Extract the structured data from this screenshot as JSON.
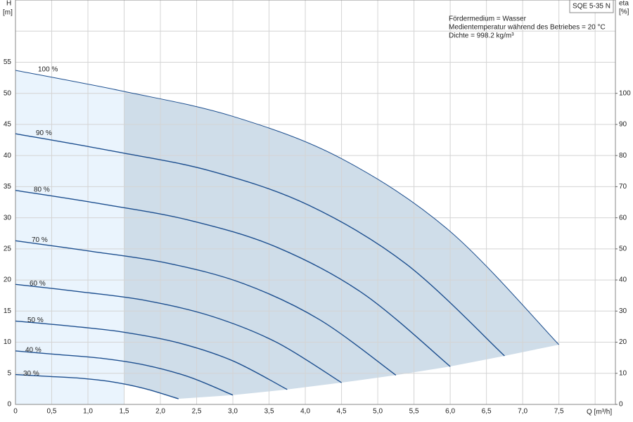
{
  "chart_data": {
    "type": "line",
    "model": "SQE 5-35 N",
    "annotations": [
      "Fördermedium = Wasser",
      "Medientemperatur während des Betriebes = 20 °C",
      "Dichte = 998.2 kg/m³"
    ],
    "y_label": "H",
    "y_unit": "[m]",
    "y2_label": "eta",
    "y2_unit": "[%]",
    "x_label": "Q [m³/h]",
    "grid": true,
    "xlim": [
      0,
      8.28
    ],
    "xticks": [
      0,
      {
        "value": 0.5,
        "label": "0,5"
      },
      {
        "value": 1.0,
        "label": "1,0"
      },
      {
        "value": 1.5,
        "label": "1,5"
      },
      {
        "value": 2.0,
        "label": "2,0"
      },
      {
        "value": 2.5,
        "label": "2,5"
      },
      {
        "value": 3.0,
        "label": "3,0"
      },
      {
        "value": 3.5,
        "label": "3,5"
      },
      {
        "value": 4.0,
        "label": "4,0"
      },
      {
        "value": 4.5,
        "label": "4,5"
      },
      {
        "value": 5.0,
        "label": "5,0"
      },
      {
        "value": 5.5,
        "label": "5,5"
      },
      {
        "value": 6.0,
        "label": "6,0"
      },
      {
        "value": 6.5,
        "label": "6,5"
      },
      {
        "value": 7.0,
        "label": "7,0"
      },
      {
        "value": 7.5,
        "label": "7,5"
      }
    ],
    "ylim": [
      0,
      65
    ],
    "yticks": [
      0,
      5,
      10,
      15,
      20,
      25,
      30,
      35,
      40,
      45,
      50,
      55
    ],
    "y2lim": [
      0,
      130
    ],
    "y2ticks": [
      0,
      10,
      20,
      30,
      40,
      50,
      60,
      70,
      80,
      90,
      100
    ],
    "series": [
      {
        "name": "100 %",
        "color": "#1d4f8f",
        "x": [
          0,
          1.5,
          3,
          4.5,
          6,
          7.5
        ],
        "values": [
          53.7,
          50.3,
          46.3,
          39.5,
          27.8,
          9.6
        ]
      },
      {
        "name": "90 %",
        "color": "#1d4f8f",
        "x": [
          0,
          1.35,
          2.7,
          4.05,
          5.4,
          6.75
        ],
        "values": [
          43.5,
          40.7,
          37.5,
          32.0,
          22.5,
          7.8
        ]
      },
      {
        "name": "80 %",
        "color": "#1d4f8f",
        "x": [
          0,
          1.2,
          2.4,
          3.6,
          4.8,
          6.0
        ],
        "values": [
          34.4,
          32.2,
          29.6,
          25.3,
          17.8,
          6.1
        ]
      },
      {
        "name": "70 %",
        "color": "#1d4f8f",
        "x": [
          0,
          1.05,
          2.1,
          3.15,
          4.2,
          5.25
        ],
        "values": [
          26.3,
          24.6,
          22.7,
          19.4,
          13.6,
          4.7
        ]
      },
      {
        "name": "60 %",
        "color": "#1d4f8f",
        "x": [
          0,
          0.9,
          1.8,
          2.7,
          3.6,
          4.5
        ],
        "values": [
          19.3,
          18.1,
          16.7,
          14.2,
          10.0,
          3.5
        ]
      },
      {
        "name": "50 %",
        "color": "#1d4f8f",
        "x": [
          0,
          0.75,
          1.5,
          2.25,
          3.0,
          3.75
        ],
        "values": [
          13.4,
          12.6,
          11.6,
          9.9,
          7.0,
          2.4
        ]
      },
      {
        "name": "40 %",
        "color": "#1d4f8f",
        "x": [
          0,
          0.6,
          1.2,
          1.8,
          2.4,
          3.0
        ],
        "values": [
          8.6,
          8.0,
          7.4,
          6.3,
          4.4,
          1.5
        ]
      },
      {
        "name": "30 %",
        "color": "#1d4f8f",
        "x": [
          0,
          0.45,
          0.9,
          1.35,
          1.8,
          2.25
        ],
        "values": [
          4.8,
          4.5,
          4.2,
          3.6,
          2.5,
          0.9
        ]
      }
    ]
  }
}
